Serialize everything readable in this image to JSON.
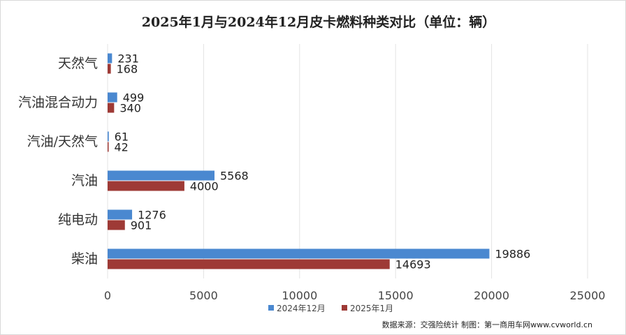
{
  "chart_data": {
    "type": "bar",
    "orientation": "horizontal",
    "title": "2025年1月与2024年12月皮卡燃料种类对比（单位：辆）",
    "categories": [
      "天然气",
      "汽油混合动力",
      "汽油/天然气",
      "汽油",
      "纯电动",
      "柴油"
    ],
    "series": [
      {
        "name": "2024年12月",
        "color": "#4a88d0",
        "values": [
          231,
          499,
          61,
          5568,
          1276,
          19886
        ]
      },
      {
        "name": "2025年1月",
        "color": "#9e3a36",
        "values": [
          168,
          340,
          42,
          4000,
          901,
          14693
        ]
      }
    ],
    "xlim": [
      0,
      25000
    ],
    "xticks": [
      "0",
      "5000",
      "10000",
      "15000",
      "20000",
      "25000"
    ],
    "xlabel": "",
    "ylabel": "",
    "grid": true,
    "legend_position": "bottom",
    "source_note": "数据来源：交强险统计 制图：第一商用车网www.cvworld.cn"
  }
}
